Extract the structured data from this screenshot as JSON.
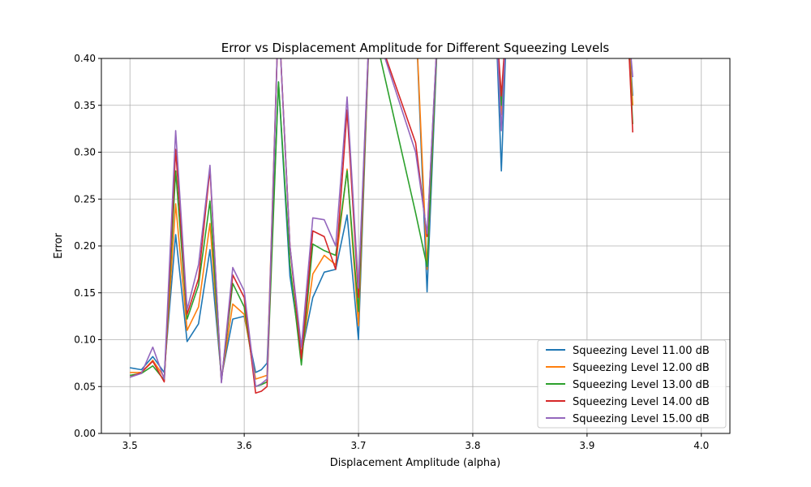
{
  "chart_data": {
    "type": "line",
    "title": "Error vs Displacement Amplitude for Different Squeezing Levels",
    "xlabel": "Displacement Amplitude (alpha)",
    "ylabel": "Error",
    "xlim": [
      3.475,
      4.025
    ],
    "ylim": [
      0.0,
      0.4
    ],
    "xticks": [
      "3.5",
      "3.6",
      "3.7",
      "3.8",
      "3.9",
      "4.0"
    ],
    "yticks": [
      "0.00",
      "0.05",
      "0.10",
      "0.15",
      "0.20",
      "0.25",
      "0.30",
      "0.35",
      "0.40"
    ],
    "grid": true,
    "legend_position": "lower-right",
    "x": [
      3.5,
      3.51,
      3.52,
      3.53,
      3.54,
      3.55,
      3.56,
      3.57,
      3.58,
      3.59,
      3.6,
      3.61,
      3.615,
      3.62,
      3.63,
      3.64,
      3.65,
      3.66,
      3.67,
      3.68,
      3.69,
      3.7,
      3.71,
      3.75,
      3.76,
      3.77,
      3.82,
      3.825,
      3.83,
      3.935,
      3.94
    ],
    "series": [
      {
        "name": "Squeezing Level 11.00 dB",
        "color": "#1f77b4",
        "values": [
          0.07,
          0.068,
          0.082,
          0.065,
          0.212,
          0.098,
          0.117,
          0.196,
          0.06,
          0.122,
          0.125,
          0.065,
          0.068,
          0.075,
          0.375,
          0.168,
          0.085,
          0.145,
          0.172,
          0.175,
          0.233,
          0.1,
          0.45,
          0.45,
          0.151,
          0.45,
          0.45,
          0.28,
          0.45,
          0.45,
          0.36
        ]
      },
      {
        "name": "Squeezing Level 12.00 dB",
        "color": "#ff7f0e",
        "values": [
          0.065,
          0.065,
          0.078,
          0.06,
          0.245,
          0.11,
          0.135,
          0.224,
          0.058,
          0.138,
          0.127,
          0.058,
          0.06,
          0.062,
          0.45,
          0.2,
          0.08,
          0.17,
          0.19,
          0.18,
          0.282,
          0.115,
          0.45,
          0.45,
          0.175,
          0.45,
          0.45,
          0.34,
          0.45,
          0.45,
          0.35
        ]
      },
      {
        "name": "Squeezing Level 13.00 dB",
        "color": "#2ca02c",
        "values": [
          0.062,
          0.064,
          0.072,
          0.057,
          0.28,
          0.122,
          0.158,
          0.248,
          0.056,
          0.16,
          0.135,
          0.05,
          0.052,
          0.055,
          0.375,
          0.18,
          0.073,
          0.202,
          0.195,
          0.19,
          0.28,
          0.13,
          0.45,
          0.235,
          0.178,
          0.45,
          0.45,
          0.35,
          0.45,
          0.45,
          0.33
        ]
      },
      {
        "name": "Squeezing Level 14.00 dB",
        "color": "#d62728",
        "values": [
          0.06,
          0.065,
          0.077,
          0.055,
          0.303,
          0.127,
          0.165,
          0.282,
          0.055,
          0.169,
          0.145,
          0.043,
          0.045,
          0.05,
          0.45,
          0.2,
          0.08,
          0.216,
          0.21,
          0.175,
          0.345,
          0.145,
          0.45,
          0.31,
          0.21,
          0.45,
          0.45,
          0.36,
          0.45,
          0.45,
          0.321
        ]
      },
      {
        "name": "Squeezing Level 15.00 dB",
        "color": "#9467bd",
        "values": [
          0.06,
          0.064,
          0.092,
          0.058,
          0.323,
          0.132,
          0.18,
          0.286,
          0.054,
          0.177,
          0.152,
          0.05,
          0.053,
          0.058,
          0.45,
          0.2,
          0.092,
          0.23,
          0.228,
          0.2,
          0.359,
          0.155,
          0.45,
          0.3,
          0.213,
          0.45,
          0.45,
          0.323,
          0.45,
          0.45,
          0.38
        ]
      }
    ]
  }
}
